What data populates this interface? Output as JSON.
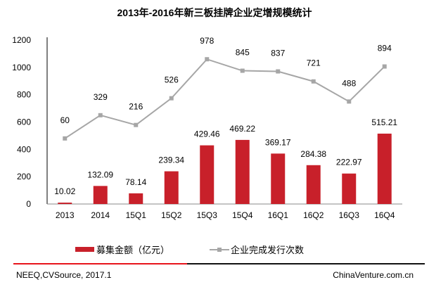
{
  "chart_data": {
    "type": "bar+line",
    "title": "2013年-2016年新三板挂牌企业定增规模统计",
    "categories": [
      "2013",
      "2014",
      "15Q1",
      "15Q2",
      "15Q3",
      "15Q4",
      "16Q1",
      "16Q2",
      "16Q3",
      "16Q4"
    ],
    "ylim": [
      0,
      1200
    ],
    "yticks": [
      "0",
      "200",
      "400",
      "600",
      "800",
      "1000",
      "1200"
    ],
    "secondary_ylim": [
      -700,
      1200
    ],
    "series": [
      {
        "name": "募集金额（亿元）",
        "type": "bar",
        "color": "#C8202A",
        "values": [
          10.02,
          132.09,
          78.14,
          239.34,
          429.46,
          469.22,
          369.17,
          284.38,
          222.97,
          515.21
        ],
        "labels": [
          "10.02",
          "132.09",
          "78.14",
          "239.34",
          "429.46",
          "469.22",
          "369.17",
          "284.38",
          "222.97",
          "515.21"
        ]
      },
      {
        "name": "企业完成发行次数",
        "type": "line",
        "axis": "secondary",
        "color": "#A6A6A6",
        "values": [
          60,
          329,
          216,
          526,
          978,
          845,
          837,
          721,
          488,
          894
        ],
        "labels": [
          "60",
          "329",
          "216",
          "526",
          "978",
          "845",
          "837",
          "721",
          "488",
          "894"
        ]
      }
    ],
    "legend": "bottom"
  },
  "footer": {
    "source": "NEEQ,CVSource, 2017.1",
    "site": "ChinaVenture.com.cn"
  }
}
